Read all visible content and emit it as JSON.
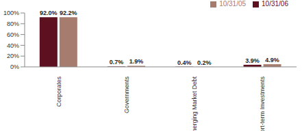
{
  "chart_data": {
    "type": "bar",
    "categories": [
      "Corporates",
      "Governments",
      "Emerging Market Debt",
      "Short-term Investments"
    ],
    "series": [
      {
        "name": "10/31/06",
        "color": "#5c1020",
        "values": [
          92.0,
          0.7,
          0.4,
          3.9
        ],
        "value_labels": [
          "92.0%",
          "0.7%",
          "0.4%",
          "3.9%"
        ]
      },
      {
        "name": "10/31/05",
        "color": "#a67c6e",
        "values": [
          92.2,
          1.9,
          0.2,
          4.9
        ],
        "value_labels": [
          "92.2%",
          "1.9%",
          "0.2%",
          "4.9%"
        ]
      }
    ],
    "ylim": [
      0,
      100
    ],
    "yticks": [
      {
        "value": 0,
        "label": "0%"
      },
      {
        "value": 20,
        "label": "20%"
      },
      {
        "value": 40,
        "label": "40%"
      },
      {
        "value": 60,
        "label": "60%"
      },
      {
        "value": 80,
        "label": "80%"
      },
      {
        "value": 100,
        "label": "100%"
      }
    ],
    "grid": false,
    "legend": "top-right",
    "data_labels": true
  }
}
